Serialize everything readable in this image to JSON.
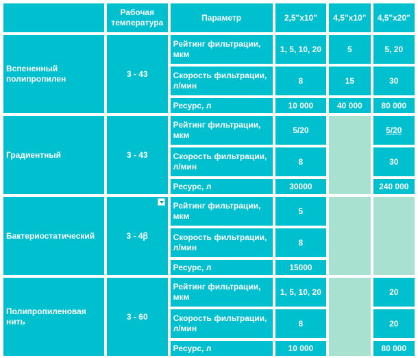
{
  "header": {
    "temp": "Рабочая температура",
    "param": "Параметр",
    "size1": "2,5\"x10\"",
    "size2": "4,5\"x10\"",
    "size3": "4,5\"x20\""
  },
  "rows": [
    {
      "material": "Вспененный полипропилен",
      "temp": "3 - 43",
      "params": [
        {
          "label": "Рейтинг фильтрации, мкм",
          "v1": "1, 5, 10, 20",
          "v2": "5",
          "v3": "5, 20"
        },
        {
          "label": "Скорость фильтрации, л/мин",
          "v1": "8",
          "v2": "15",
          "v3": "30"
        },
        {
          "label": "Ресурс, л",
          "v1": "10 000",
          "v2": "40 000",
          "v3": "80 000"
        }
      ]
    },
    {
      "material": "Градиентный",
      "temp": "3 - 43",
      "params": [
        {
          "label": "Рейтинг фильтрации, мкм",
          "v1": "5/20",
          "v3": "5/20"
        },
        {
          "label": "Скорость фильтрации, л/мин",
          "v1": "8",
          "v3": "30"
        },
        {
          "label": "Ресурс, л",
          "v1": "30000",
          "v3": "240 000"
        }
      ]
    },
    {
      "material": "Бактериостатический",
      "temp": "3 - 4ꞵ",
      "params": [
        {
          "label": "Рейтинг фильтрации, мкм",
          "v1": "5"
        },
        {
          "label": "Скорость фильтрации, л/мин",
          "v1": "8"
        },
        {
          "label": "Ресурс, л",
          "v1": "15000"
        }
      ]
    },
    {
      "material": "Полипропиленовая нить",
      "temp": "3 - 60",
      "params": [
        {
          "label": "Рейтинг фильтрации, мкм",
          "v1": "1, 5, 10, 20",
          "v3": "20"
        },
        {
          "label": "Скорость фильтрации, л/мин",
          "v1": "8",
          "v3": "20"
        },
        {
          "label": "Ресурс, л",
          "v1": "10 000",
          "v3": "80 000"
        }
      ]
    }
  ],
  "colors": {
    "cell": "#00bfcf",
    "pale": "#a8e1cf",
    "border": "#ffffff"
  }
}
